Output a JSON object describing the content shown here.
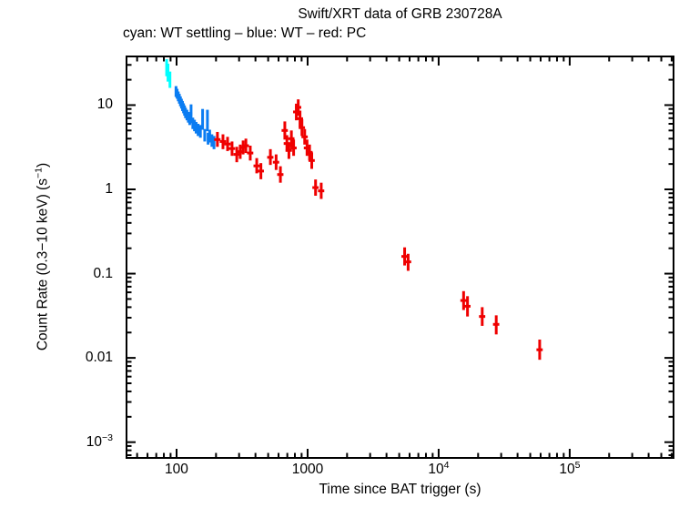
{
  "chart_data": {
    "type": "scatter",
    "title": "Swift/XRT data of GRB 230728A",
    "subtitle": "cyan: WT settling – blue: WT – red: PC",
    "xlabel": "Time since BAT trigger (s)",
    "ylabel_parts": {
      "pre": "Count Rate (0.3−10 keV) (s",
      "sup": "−1",
      "post": ")"
    },
    "x_scale": "log",
    "y_scale": "log",
    "xlim": [
      41.5,
      620000
    ],
    "ylim": [
      0.00065,
      37.8
    ],
    "grid": false,
    "legend_position": "subtitle-line",
    "frame_color": "#000000",
    "x_ticks": [
      {
        "v": 100,
        "base": "100",
        "sup": ""
      },
      {
        "v": 1000,
        "base": "1000",
        "sup": ""
      },
      {
        "v": 10000,
        "base": "10",
        "sup": "4"
      },
      {
        "v": 100000,
        "base": "10",
        "sup": "5"
      }
    ],
    "y_ticks": [
      {
        "v": 10,
        "base": "10",
        "sup": ""
      },
      {
        "v": 1,
        "base": "1",
        "sup": ""
      },
      {
        "v": 0.1,
        "base": "0.1",
        "sup": ""
      },
      {
        "v": 0.01,
        "base": "0.01",
        "sup": ""
      },
      {
        "v": 0.001,
        "base": "10",
        "sup": "−3"
      }
    ],
    "series": [
      {
        "name": "WT settling",
        "color": "#00ffff",
        "t_halfwidth_frac": 0.015,
        "points": [
          [
            84,
            29,
            22,
            35
          ],
          [
            86,
            25,
            19,
            31
          ],
          [
            89,
            20,
            16,
            25
          ]
        ]
      },
      {
        "name": "WT",
        "color": "#0a7cf2",
        "t_halfwidth_frac": 0.02,
        "points": [
          [
            99,
            14.5,
            12.5,
            16.8
          ],
          [
            101,
            13.6,
            11.9,
            15.6
          ],
          [
            103,
            12.7,
            11.1,
            14.5
          ],
          [
            105,
            11.9,
            10.4,
            13.6
          ],
          [
            107,
            11.1,
            9.7,
            12.7
          ],
          [
            109,
            10.4,
            9.1,
            11.9
          ],
          [
            111,
            9.8,
            8.5,
            11.2
          ],
          [
            113,
            9.2,
            8.0,
            10.5
          ],
          [
            115,
            8.6,
            7.5,
            9.9
          ],
          [
            117,
            8.1,
            7.0,
            9.3
          ],
          [
            120,
            7.6,
            6.6,
            8.8
          ],
          [
            123,
            7.2,
            6.2,
            8.3
          ],
          [
            126,
            6.8,
            5.8,
            7.9
          ],
          [
            129,
            7.9,
            6.1,
            10.2
          ],
          [
            133,
            6.1,
            5.2,
            7.1
          ],
          [
            137,
            5.7,
            4.9,
            6.7
          ],
          [
            141,
            5.4,
            4.6,
            6.3
          ],
          [
            146,
            5.1,
            4.3,
            6.0
          ],
          [
            152,
            4.9,
            4.1,
            5.8
          ],
          [
            158,
            6.8,
            5.1,
            9.0
          ],
          [
            164,
            4.4,
            3.7,
            5.2
          ],
          [
            172,
            6.6,
            4.9,
            8.8
          ],
          [
            174,
            4.0,
            3.4,
            4.7
          ],
          [
            179,
            4.3,
            3.6,
            5.1
          ],
          [
            186,
            3.8,
            3.2,
            4.5
          ],
          [
            193,
            3.6,
            3.0,
            4.3
          ]
        ]
      },
      {
        "name": "PC",
        "color": "#ef0000",
        "t_halfwidth_frac": 0.055,
        "points": [
          [
            205,
            3.9,
            3.2,
            4.8
          ],
          [
            226,
            3.7,
            3.0,
            4.5
          ],
          [
            245,
            3.45,
            2.85,
            4.2
          ],
          [
            265,
            3.05,
            2.5,
            3.7
          ],
          [
            288,
            2.6,
            2.1,
            3.2
          ],
          [
            306,
            2.8,
            2.3,
            3.4
          ],
          [
            322,
            3.15,
            2.6,
            3.8
          ],
          [
            338,
            3.3,
            2.7,
            4.0
          ],
          [
            365,
            2.7,
            2.2,
            3.3
          ],
          [
            409,
            1.9,
            1.55,
            2.35
          ],
          [
            440,
            1.65,
            1.32,
            2.05
          ],
          [
            520,
            2.4,
            1.95,
            3.0
          ],
          [
            575,
            2.1,
            1.7,
            2.6
          ],
          [
            620,
            1.5,
            1.2,
            1.88
          ],
          [
            670,
            5.0,
            3.9,
            6.4
          ],
          [
            695,
            3.5,
            2.8,
            4.4
          ],
          [
            720,
            2.9,
            2.3,
            3.6
          ],
          [
            752,
            4.0,
            3.2,
            5.0
          ],
          [
            782,
            3.1,
            2.5,
            3.9
          ],
          [
            820,
            8.3,
            6.6,
            10.4
          ],
          [
            848,
            9.4,
            7.5,
            11.7
          ],
          [
            875,
            6.9,
            5.5,
            8.6
          ],
          [
            905,
            5.4,
            4.3,
            6.8
          ],
          [
            950,
            4.2,
            3.4,
            5.2
          ],
          [
            990,
            3.1,
            2.5,
            3.9
          ],
          [
            1035,
            2.75,
            2.2,
            3.4
          ],
          [
            1075,
            2.2,
            1.75,
            2.75
          ],
          [
            1150,
            1.05,
            0.84,
            1.31
          ],
          [
            1270,
            0.96,
            0.77,
            1.2
          ],
          [
            5500,
            0.16,
            0.125,
            0.205
          ],
          [
            5850,
            0.138,
            0.108,
            0.172
          ],
          [
            15500,
            0.048,
            0.037,
            0.062
          ],
          [
            16600,
            0.041,
            0.031,
            0.054
          ],
          [
            21500,
            0.031,
            0.024,
            0.04
          ],
          [
            27500,
            0.025,
            0.019,
            0.032
          ],
          [
            59000,
            0.0125,
            0.0095,
            0.0165
          ]
        ]
      }
    ]
  }
}
